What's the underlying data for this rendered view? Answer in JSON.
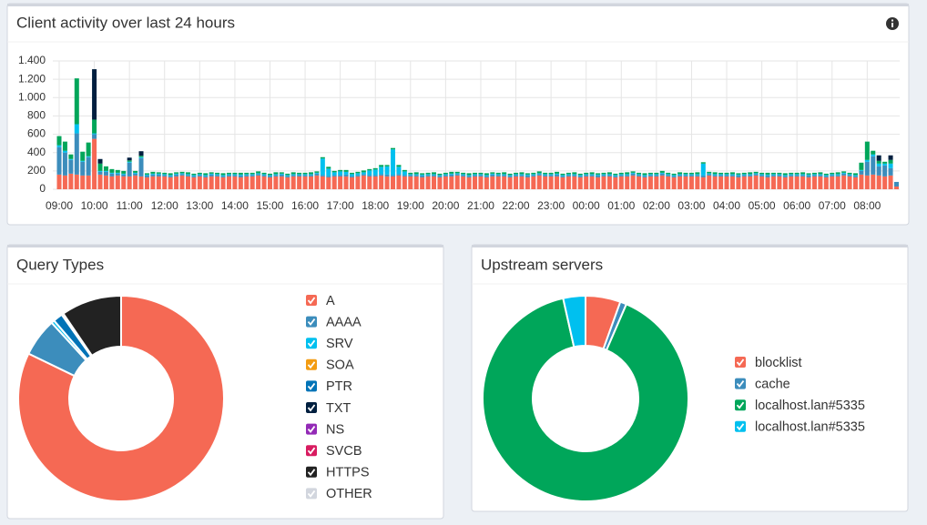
{
  "chart_data": [
    {
      "type": "stacked-bar",
      "title": "Client activity over last 24 hours",
      "categories": [
        "09:00",
        null,
        null,
        null,
        null,
        null,
        "10:00",
        null,
        null,
        null,
        null,
        null,
        "11:00",
        null,
        null,
        null,
        null,
        null,
        "12:00",
        null,
        null,
        null,
        null,
        null,
        "13:00",
        null,
        null,
        null,
        null,
        null,
        "14:00",
        null,
        null,
        null,
        null,
        null,
        "15:00",
        null,
        null,
        null,
        null,
        null,
        "16:00",
        null,
        null,
        null,
        null,
        null,
        "17:00",
        null,
        null,
        null,
        null,
        null,
        "18:00",
        null,
        null,
        null,
        null,
        null,
        "19:00",
        null,
        null,
        null,
        null,
        null,
        "20:00",
        null,
        null,
        null,
        null,
        null,
        "21:00",
        null,
        null,
        null,
        null,
        null,
        "22:00",
        null,
        null,
        null,
        null,
        null,
        "23:00",
        null,
        null,
        null,
        null,
        null,
        "00:00",
        null,
        null,
        null,
        null,
        null,
        "01:00",
        null,
        null,
        null,
        null,
        null,
        "02:00",
        null,
        null,
        null,
        null,
        null,
        "03:00",
        null,
        null,
        null,
        null,
        null,
        "04:00",
        null,
        null,
        null,
        null,
        null,
        "05:00",
        null,
        null,
        null,
        null,
        null,
        "06:00",
        null,
        null,
        null,
        null,
        null,
        "07:00",
        null,
        null,
        null,
        null,
        null,
        "08:00",
        null,
        null,
        null,
        null,
        null
      ],
      "series": [
        {
          "color": "#f56954",
          "values": [
            160,
            150,
            170,
            160,
            150,
            150,
            550,
            160,
            150,
            140,
            150,
            140,
            140,
            150,
            140,
            130,
            140,
            140,
            140,
            130,
            140,
            150,
            140,
            130,
            140,
            130,
            140,
            140,
            130,
            140,
            140,
            130,
            140,
            140,
            150,
            140,
            130,
            140,
            140,
            130,
            140,
            140,
            140,
            140,
            150,
            140,
            130,
            140,
            140,
            140,
            130,
            140,
            150,
            140,
            140,
            150,
            140,
            140,
            150,
            140,
            140,
            140,
            130,
            140,
            140,
            130,
            140,
            140,
            150,
            140,
            130,
            140,
            140,
            130,
            140,
            140,
            140,
            130,
            140,
            140,
            130,
            140,
            150,
            140,
            140,
            140,
            130,
            140,
            140,
            130,
            140,
            140,
            130,
            140,
            140,
            130,
            140,
            140,
            150,
            140,
            130,
            140,
            140,
            150,
            140,
            130,
            140,
            140,
            140,
            140,
            130,
            150,
            140,
            140,
            140,
            140,
            130,
            140,
            140,
            150,
            140,
            130,
            140,
            140,
            130,
            140,
            140,
            140,
            130,
            140,
            140,
            130,
            140,
            140,
            150,
            140,
            130,
            160,
            150,
            160,
            150,
            140,
            150,
            30
          ]
        },
        {
          "color": "#3c8dbc",
          "values": [
            300,
            250,
            150,
            450,
            150,
            200,
            50,
            30,
            40,
            30,
            20,
            20,
            150,
            20,
            200,
            20,
            20,
            20,
            15,
            15,
            20,
            15,
            15,
            15,
            15,
            15,
            20,
            15,
            15,
            15,
            15,
            20,
            15,
            15,
            15,
            15,
            15,
            15,
            20,
            15,
            15,
            15,
            15,
            15,
            20,
            15,
            15,
            15,
            15,
            20,
            15,
            15,
            15,
            15,
            15,
            15,
            20,
            15,
            15,
            15,
            15,
            15,
            20,
            15,
            15,
            15,
            15,
            20,
            15,
            15,
            15,
            15,
            15,
            15,
            20,
            15,
            15,
            15,
            15,
            15,
            20,
            15,
            15,
            15,
            15,
            20,
            15,
            15,
            15,
            15,
            15,
            15,
            20,
            15,
            15,
            15,
            15,
            15,
            20,
            15,
            15,
            15,
            15,
            20,
            15,
            15,
            15,
            15,
            15,
            15,
            20,
            15,
            15,
            15,
            15,
            15,
            20,
            15,
            15,
            15,
            15,
            20,
            15,
            15,
            15,
            15,
            15,
            15,
            20,
            15,
            15,
            15,
            15,
            15,
            20,
            15,
            15,
            40,
            150,
            200,
            100,
            120,
            80,
            50
          ]
        },
        {
          "color": "#00c0ef",
          "values": [
            20,
            20,
            10,
            100,
            10,
            10,
            10,
            10,
            10,
            10,
            10,
            10,
            10,
            10,
            10,
            10,
            10,
            10,
            10,
            10,
            10,
            10,
            10,
            10,
            10,
            10,
            10,
            10,
            10,
            10,
            10,
            10,
            10,
            10,
            10,
            10,
            10,
            10,
            10,
            10,
            10,
            10,
            10,
            10,
            10,
            180,
            80,
            30,
            40,
            30,
            20,
            20,
            20,
            50,
            60,
            80,
            90,
            280,
            80,
            40,
            10,
            10,
            10,
            10,
            10,
            10,
            10,
            10,
            10,
            10,
            10,
            10,
            10,
            10,
            10,
            10,
            10,
            10,
            10,
            10,
            10,
            10,
            10,
            10,
            10,
            10,
            10,
            10,
            10,
            10,
            10,
            10,
            10,
            10,
            10,
            10,
            10,
            10,
            10,
            10,
            10,
            10,
            10,
            10,
            10,
            10,
            10,
            10,
            10,
            10,
            130,
            10,
            10,
            10,
            10,
            10,
            10,
            10,
            10,
            10,
            10,
            10,
            10,
            10,
            10,
            10,
            10,
            10,
            10,
            10,
            10,
            10,
            10,
            10,
            10,
            10,
            10,
            10,
            20,
            20,
            30,
            20,
            50,
            0
          ]
        },
        {
          "color": "#00a65a",
          "values": [
            100,
            100,
            50,
            500,
            100,
            150,
            150,
            80,
            50,
            40,
            30,
            30,
            15,
            20,
            15,
            15,
            20,
            15,
            15,
            20,
            15,
            15,
            20,
            15,
            15,
            20,
            15,
            15,
            20,
            15,
            15,
            20,
            15,
            15,
            20,
            15,
            15,
            20,
            15,
            15,
            20,
            15,
            15,
            20,
            15,
            15,
            20,
            15,
            15,
            20,
            15,
            15,
            20,
            15,
            15,
            20,
            15,
            15,
            20,
            15,
            15,
            20,
            15,
            15,
            20,
            15,
            15,
            20,
            15,
            15,
            20,
            15,
            15,
            20,
            15,
            15,
            20,
            15,
            15,
            20,
            15,
            15,
            20,
            15,
            15,
            20,
            15,
            15,
            20,
            15,
            15,
            20,
            15,
            15,
            20,
            15,
            15,
            20,
            15,
            15,
            20,
            15,
            15,
            20,
            15,
            15,
            20,
            15,
            15,
            20,
            15,
            15,
            20,
            15,
            15,
            20,
            15,
            15,
            20,
            15,
            15,
            20,
            15,
            15,
            20,
            15,
            15,
            20,
            15,
            15,
            20,
            15,
            15,
            20,
            15,
            15,
            20,
            80,
            200,
            40,
            30,
            20,
            40,
            0
          ]
        },
        {
          "color": "#001f3f",
          "values": [
            0,
            0,
            0,
            0,
            0,
            0,
            550,
            50,
            0,
            0,
            0,
            0,
            30,
            0,
            50,
            0,
            0,
            0,
            0,
            0,
            0,
            0,
            0,
            0,
            0,
            0,
            0,
            0,
            0,
            0,
            0,
            0,
            0,
            0,
            0,
            0,
            0,
            0,
            0,
            0,
            0,
            0,
            0,
            0,
            0,
            0,
            0,
            0,
            0,
            0,
            0,
            0,
            0,
            0,
            0,
            0,
            0,
            0,
            0,
            0,
            0,
            0,
            0,
            0,
            0,
            0,
            0,
            0,
            0,
            0,
            0,
            0,
            0,
            0,
            0,
            0,
            0,
            0,
            0,
            0,
            0,
            0,
            0,
            0,
            0,
            0,
            0,
            0,
            0,
            0,
            0,
            0,
            0,
            0,
            0,
            0,
            0,
            0,
            0,
            0,
            0,
            0,
            0,
            0,
            0,
            0,
            0,
            0,
            0,
            0,
            0,
            0,
            0,
            0,
            0,
            0,
            0,
            0,
            0,
            0,
            0,
            0,
            0,
            0,
            0,
            0,
            0,
            0,
            0,
            0,
            0,
            0,
            0,
            0,
            0,
            0,
            0,
            0,
            0,
            0,
            60,
            0,
            50,
            0
          ]
        }
      ],
      "ylim": [
        0,
        1400
      ],
      "yticks": [
        0,
        200,
        400,
        600,
        800,
        {
          "value": 1000,
          "label": "1.000"
        },
        {
          "value": 1200,
          "label": "1.200"
        },
        {
          "value": 1400,
          "label": "1.400"
        }
      ],
      "grid": true
    },
    {
      "type": "doughnut",
      "title": "Query Types",
      "categories": [
        "A",
        "AAAA",
        "SRV",
        "SOA",
        "PTR",
        "TXT",
        "NS",
        "SVCB",
        "HTTPS",
        "OTHER"
      ],
      "values": [
        82.2,
        6,
        0.5,
        0,
        1.5,
        0.3,
        0,
        0,
        9.5,
        0
      ],
      "colors": [
        "#f56954",
        "#3c8dbc",
        "#00c0ef",
        "#f39c12",
        "#0073b7",
        "#001f3f",
        "#932ab6",
        "#d81b60",
        "#222222",
        "#d2d6de"
      ]
    },
    {
      "type": "doughnut",
      "title": "Upstream servers",
      "categories": [
        "blocklist",
        "cache",
        "localhost.lan#5335",
        "localhost.lan#5335"
      ],
      "values": [
        5.5,
        1,
        90,
        3.5
      ],
      "colors": [
        "#f56954",
        "#3c8dbc",
        "#00a65a",
        "#00c0ef"
      ]
    }
  ]
}
